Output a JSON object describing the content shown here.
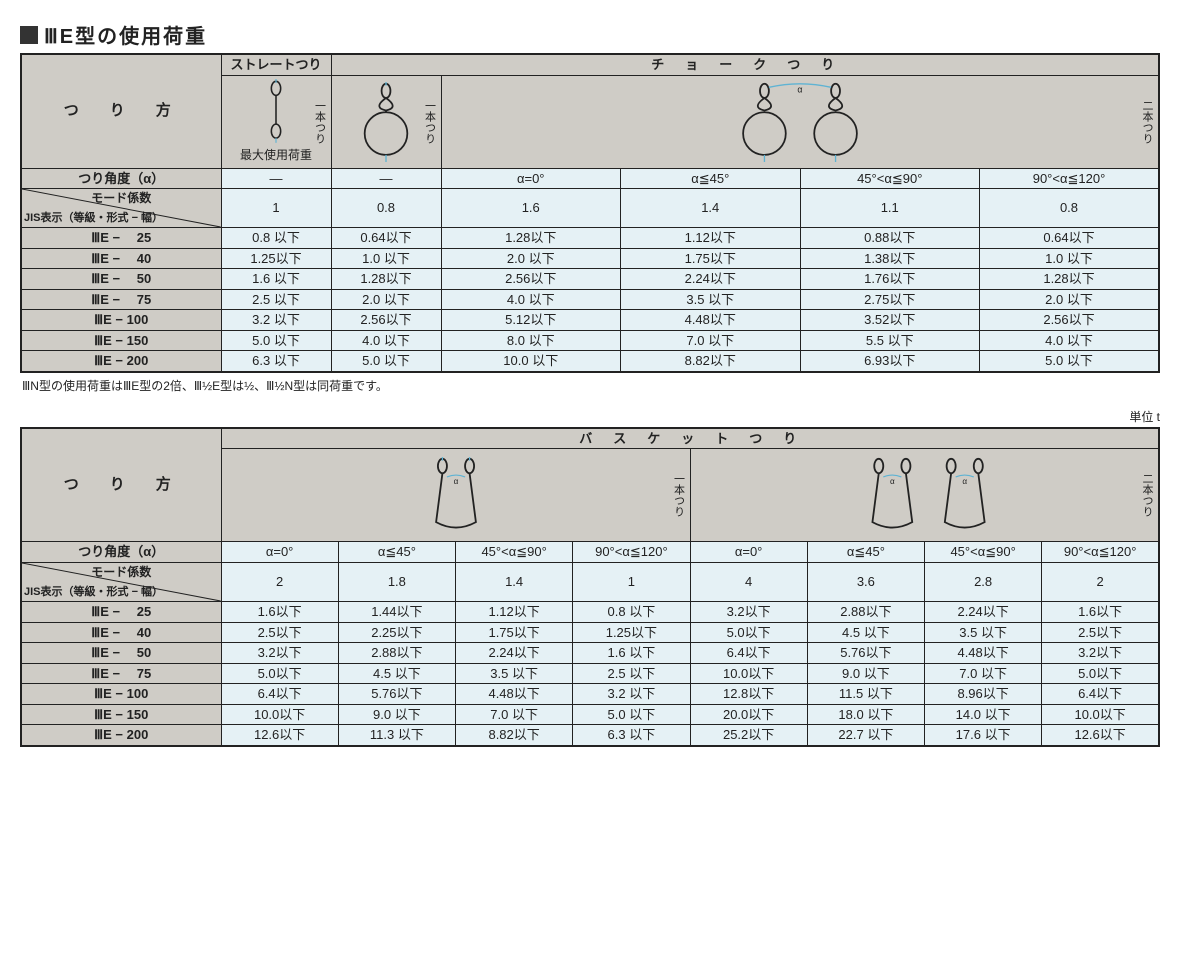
{
  "title": "ⅢE型の使用荷重",
  "row_label_header": "つ　り　方",
  "angle_row_label": "つり角度（α）",
  "mode_top": "モード係数",
  "mode_bottom": "JIS表示（等級・形式 − 幅）",
  "note": "ⅢN型の使用荷重はⅢE型の2倍、Ⅲ½E型は½、Ⅲ½N型は同荷重です。",
  "unit": "単位 t",
  "colors": {
    "header_bg": "#cfccc6",
    "cell_bg": "#e5f1f5",
    "line": "#222",
    "sling": "#5fb3d3"
  },
  "row_labels": [
    "ⅢE − 　25",
    "ⅢE − 　40",
    "ⅢE − 　50",
    "ⅢE − 　75",
    "ⅢE − 100",
    "ⅢE − 150",
    "ⅢE − 200"
  ],
  "table1": {
    "top_labels": {
      "straight": "ストレートつり",
      "choke": "チ　ョ　ー　ク　つ　り"
    },
    "sub_labels": {
      "one_leg": "一本つり",
      "two_leg": "二本つり"
    },
    "max_label": "最大使用荷重",
    "angles": [
      "—",
      "—",
      "α=0°",
      "α≦45°",
      "45°<α≦90°",
      "90°<α≦120°"
    ],
    "mode": [
      "1",
      "0.8",
      "1.6",
      "1.4",
      "1.1",
      "0.8"
    ],
    "rows": [
      [
        "0.8  以下",
        "0.64以下",
        "1.28以下",
        "1.12以下",
        "0.88以下",
        "0.64以下"
      ],
      [
        "1.25以下",
        "1.0  以下",
        "2.0  以下",
        "1.75以下",
        "1.38以下",
        "1.0  以下"
      ],
      [
        "1.6  以下",
        "1.28以下",
        "2.56以下",
        "2.24以下",
        "1.76以下",
        "1.28以下"
      ],
      [
        "2.5  以下",
        "2.0  以下",
        "4.0  以下",
        "3.5  以下",
        "2.75以下",
        "2.0  以下"
      ],
      [
        "3.2  以下",
        "2.56以下",
        "5.12以下",
        "4.48以下",
        "3.52以下",
        "2.56以下"
      ],
      [
        "5.0  以下",
        "4.0  以下",
        "8.0  以下",
        "7.0  以下",
        "5.5  以下",
        "4.0  以下"
      ],
      [
        "6.3  以下",
        "5.0  以下",
        "10.0  以下",
        "8.82以下",
        "6.93以下",
        "5.0  以下"
      ]
    ]
  },
  "table2": {
    "top_label": "バ　ス　ケ　ッ　ト　つ　り",
    "sub_labels": {
      "one_leg": "一本つり",
      "two_leg": "二本つり"
    },
    "angles": [
      "α=0°",
      "α≦45°",
      "45°<α≦90°",
      "90°<α≦120°",
      "α=0°",
      "α≦45°",
      "45°<α≦90°",
      "90°<α≦120°"
    ],
    "mode": [
      "2",
      "1.8",
      "1.4",
      "1",
      "4",
      "3.6",
      "2.8",
      "2"
    ],
    "rows": [
      [
        "1.6以下",
        "1.44以下",
        "1.12以下",
        "0.8  以下",
        "3.2以下",
        "2.88以下",
        "2.24以下",
        "1.6以下"
      ],
      [
        "2.5以下",
        "2.25以下",
        "1.75以下",
        "1.25以下",
        "5.0以下",
        "4.5  以下",
        "3.5  以下",
        "2.5以下"
      ],
      [
        "3.2以下",
        "2.88以下",
        "2.24以下",
        "1.6  以下",
        "6.4以下",
        "5.76以下",
        "4.48以下",
        "3.2以下"
      ],
      [
        "5.0以下",
        "4.5  以下",
        "3.5  以下",
        "2.5  以下",
        "10.0以下",
        "9.0  以下",
        "7.0  以下",
        "5.0以下"
      ],
      [
        "6.4以下",
        "5.76以下",
        "4.48以下",
        "3.2  以下",
        "12.8以下",
        "11.5  以下",
        "8.96以下",
        "6.4以下"
      ],
      [
        "10.0以下",
        "9.0  以下",
        "7.0  以下",
        "5.0  以下",
        "20.0以下",
        "18.0  以下",
        "14.0  以下",
        "10.0以下"
      ],
      [
        "12.6以下",
        "11.3  以下",
        "8.82以下",
        "6.3  以下",
        "25.2以下",
        "22.7  以下",
        "17.6  以下",
        "12.6以下"
      ]
    ]
  }
}
